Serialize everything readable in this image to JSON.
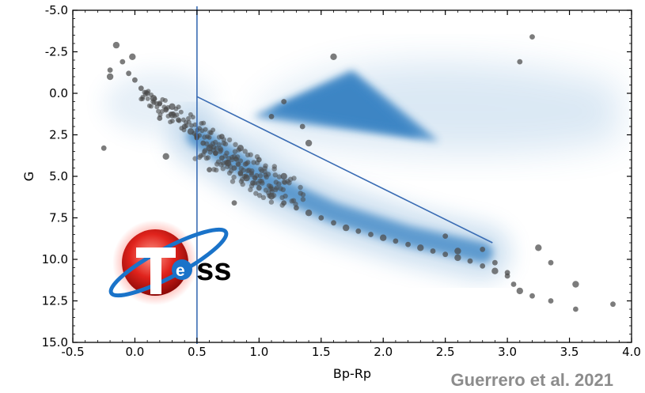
{
  "chart_data": {
    "type": "scatter",
    "title": "",
    "xlabel": "Bp-Rp",
    "ylabel": "G",
    "xlim": [
      -0.5,
      4.0
    ],
    "ylim": [
      15.0,
      -5.0
    ],
    "y_inverted": true,
    "x_ticks": [
      "-0.5",
      "0.0",
      "0.5",
      "1.0",
      "1.5",
      "2.0",
      "2.5",
      "3.0",
      "3.5",
      "4.0"
    ],
    "y_ticks": [
      "-5.0",
      "-2.5",
      "0.0",
      "2.5",
      "5.0",
      "7.5",
      "10.0",
      "12.5",
      "15.0"
    ],
    "grid": false,
    "colors": {
      "density": "#3a84c4",
      "points": "#4a4a4a",
      "lines": "#3b6db4"
    },
    "vertical_line": {
      "x": 0.5
    },
    "diagonal_line": {
      "x": [
        0.5,
        2.88
      ],
      "y": [
        0.2,
        9.0
      ]
    },
    "density_regions": [
      {
        "name": "giant-branch",
        "x": [
          0.95,
          1.75,
          2.45,
          1.45
        ],
        "y": [
          1.4,
          -1.4,
          2.9,
          1.9
        ]
      },
      {
        "name": "main-sequence",
        "x": [
          0.5,
          0.75,
          1.1,
          1.6,
          2.2,
          2.8
        ],
        "y": [
          2.6,
          3.8,
          5.5,
          7.2,
          8.6,
          9.6
        ]
      }
    ],
    "series": [
      {
        "points": [
          [
            -0.15,
            -2.9
          ],
          [
            -0.1,
            -1.9
          ],
          [
            -0.2,
            -1.4
          ],
          [
            -0.2,
            -1.0
          ],
          [
            -0.05,
            -1.2
          ],
          [
            0.0,
            -0.8
          ],
          [
            -0.02,
            -2.2
          ],
          [
            0.05,
            -0.3
          ],
          [
            0.1,
            0.0
          ],
          [
            0.15,
            0.3
          ],
          [
            0.2,
            0.6
          ],
          [
            0.25,
            1.0
          ],
          [
            0.3,
            1.3
          ],
          [
            0.35,
            1.6
          ],
          [
            0.4,
            2.0
          ],
          [
            0.45,
            2.3
          ],
          [
            0.5,
            2.6
          ],
          [
            0.55,
            3.0
          ],
          [
            0.6,
            3.3
          ],
          [
            0.65,
            3.6
          ],
          [
            0.7,
            3.9
          ],
          [
            0.75,
            4.2
          ],
          [
            0.8,
            4.5
          ],
          [
            0.85,
            4.8
          ],
          [
            0.9,
            5.1
          ],
          [
            0.95,
            5.4
          ],
          [
            1.0,
            5.7
          ],
          [
            1.1,
            6.2
          ],
          [
            1.2,
            6.6
          ],
          [
            1.3,
            6.9
          ],
          [
            1.4,
            7.2
          ],
          [
            1.5,
            7.5
          ],
          [
            1.6,
            7.8
          ],
          [
            1.7,
            8.1
          ],
          [
            1.8,
            8.3
          ],
          [
            1.9,
            8.5
          ],
          [
            2.0,
            8.7
          ],
          [
            2.1,
            8.9
          ],
          [
            2.2,
            9.1
          ],
          [
            2.3,
            9.3
          ],
          [
            2.4,
            9.5
          ],
          [
            2.5,
            9.7
          ],
          [
            2.6,
            9.9
          ],
          [
            2.7,
            10.1
          ],
          [
            2.8,
            10.4
          ],
          [
            2.9,
            10.7
          ],
          [
            3.0,
            11.0
          ],
          [
            3.05,
            11.5
          ],
          [
            3.1,
            11.9
          ],
          [
            3.2,
            12.2
          ],
          [
            3.35,
            12.5
          ],
          [
            3.55,
            11.5
          ],
          [
            3.55,
            13.0
          ],
          [
            3.85,
            12.7
          ],
          [
            3.25,
            9.3
          ],
          [
            3.1,
            -1.9
          ],
          [
            3.2,
            -3.4
          ],
          [
            1.6,
            -2.2
          ],
          [
            1.2,
            0.5
          ],
          [
            1.1,
            1.4
          ],
          [
            0.25,
            3.8
          ],
          [
            -0.25,
            3.3
          ],
          [
            0.8,
            6.6
          ],
          [
            1.4,
            3.0
          ],
          [
            2.5,
            8.6
          ],
          [
            2.8,
            9.4
          ],
          [
            2.6,
            9.5
          ],
          [
            2.9,
            10.2
          ],
          [
            3.0,
            10.8
          ],
          [
            0.3,
            0.8
          ],
          [
            0.2,
            1.5
          ],
          [
            0.7,
            2.6
          ],
          [
            0.85,
            3.3
          ],
          [
            1.0,
            4.0
          ],
          [
            0.6,
            4.6
          ],
          [
            1.2,
            5.0
          ],
          [
            1.35,
            2.0
          ],
          [
            3.35,
            10.2
          ]
        ]
      }
    ]
  },
  "logo": {
    "letters": "ss"
  },
  "credit": "Guerrero et al. 2021"
}
